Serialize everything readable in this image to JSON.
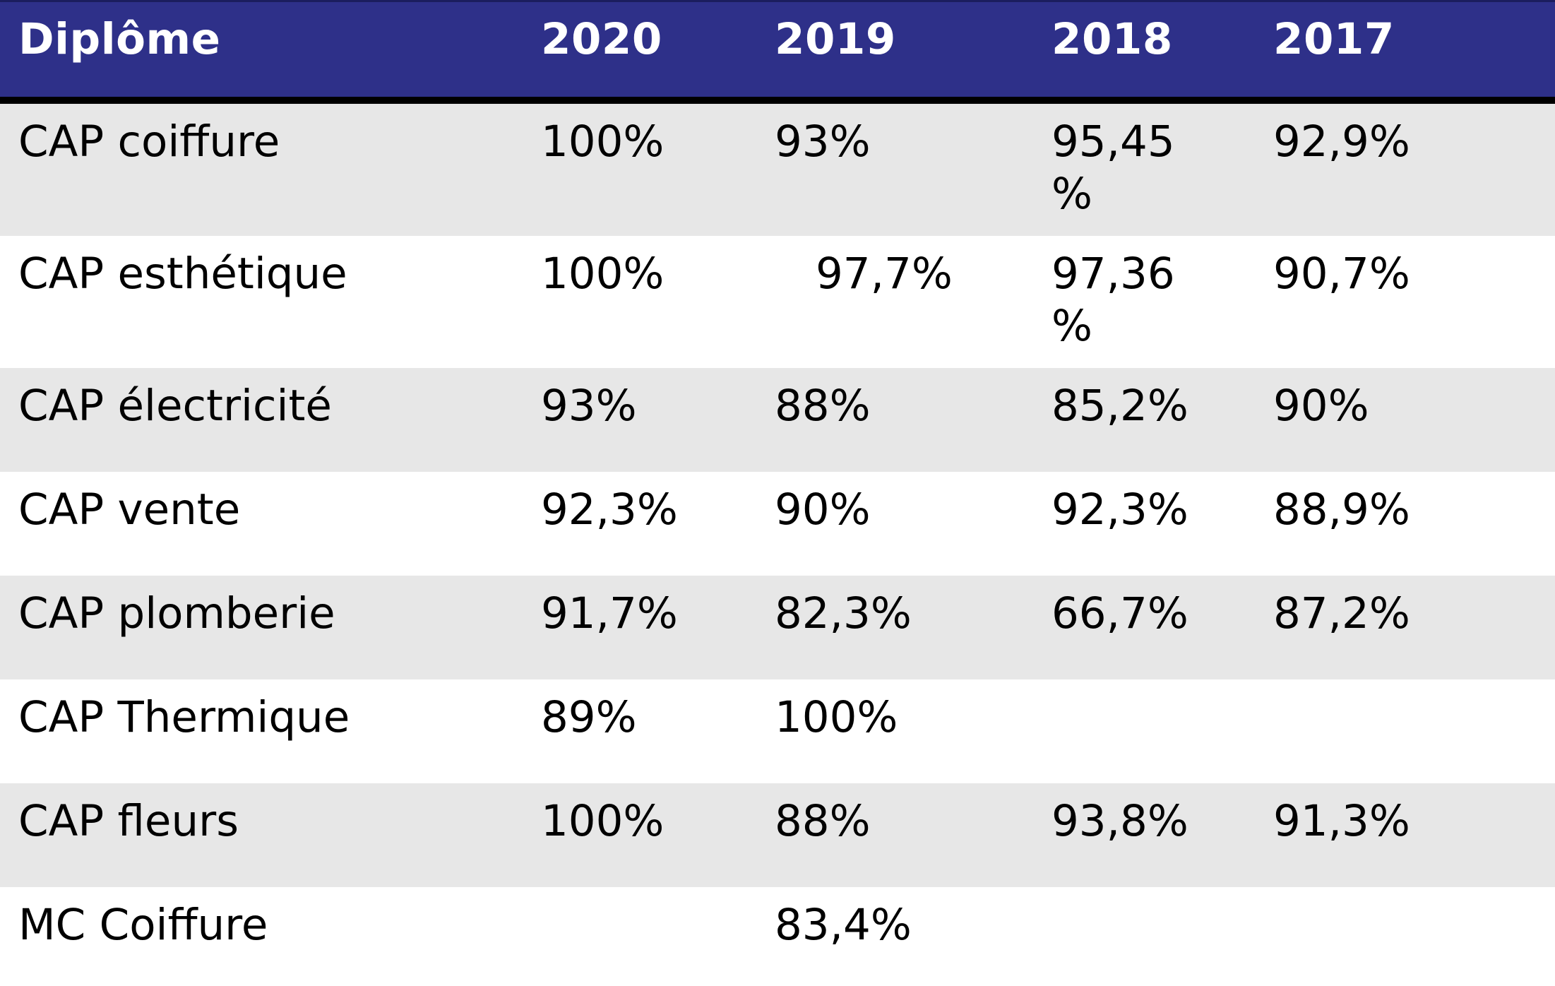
{
  "table": {
    "headers": [
      "Diplôme",
      "2020",
      "2019",
      "2018",
      "2017"
    ],
    "rows": [
      {
        "label": "CAP coiffure",
        "cells": [
          "100%",
          "93%",
          "95,45 %",
          "92,9%"
        ]
      },
      {
        "label": "CAP esthétique",
        "cells": [
          "100%",
          "97,7%",
          "97,36 %",
          "90,7%"
        ]
      },
      {
        "label": "CAP électricité",
        "cells": [
          "93%",
          "88%",
          "85,2%",
          "90%"
        ]
      },
      {
        "label": "CAP vente",
        "cells": [
          "92,3%",
          "90%",
          "92,3%",
          "88,9%"
        ]
      },
      {
        "label": "CAP plomberie",
        "cells": [
          "91,7%",
          "82,3%",
          "66,7%",
          "87,2%"
        ]
      },
      {
        "label": "CAP Thermique",
        "cells": [
          "89%",
          "100%",
          "",
          ""
        ]
      },
      {
        "label": "CAP fleurs",
        "cells": [
          "100%",
          "88%",
          "93,8%",
          "91,3%"
        ]
      },
      {
        "label": "MC Coiffure",
        "cells": [
          "",
          "83,4%",
          "",
          ""
        ]
      }
    ]
  }
}
